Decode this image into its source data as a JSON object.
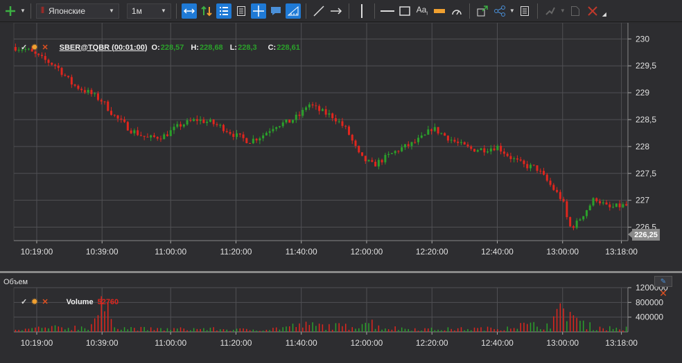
{
  "toolbar": {
    "chart_type": "Японские",
    "timeframe": "1м",
    "icons": [
      "add-icon",
      "candles-icon",
      "sync-icon",
      "sort-icon",
      "list-icon",
      "doc-icon",
      "crosshair-icon",
      "comment-icon",
      "ruler-icon",
      "line-icon",
      "arrow-icon",
      "vline-icon",
      "hline-icon",
      "rect-icon",
      "text-icon",
      "highlight-icon",
      "gauge-icon",
      "export-icon",
      "share-icon",
      "notes-icon",
      "pin-icon",
      "file-icon",
      "delete-icon"
    ]
  },
  "main_chart": {
    "symbol": "SBER@TQBR (00:01:00)",
    "o_label": "O:",
    "o_value": "228,57",
    "h_label": "H:",
    "h_value": "228,68",
    "l_label": "L:",
    "l_value": "228,3",
    "c_label": "C:",
    "c_value": "228,61",
    "last_price": "226,25",
    "y_ticks": [
      "230",
      "229,5",
      "229",
      "228,5",
      "228",
      "227,5",
      "227",
      "226,5"
    ],
    "x_ticks": [
      "10:19:00",
      "10:39:00",
      "11:00:00",
      "11:20:00",
      "11:40:00",
      "12:00:00",
      "12:20:00",
      "12:40:00",
      "13:00:00",
      "13:18:00"
    ]
  },
  "volume_pane": {
    "title": "Объем",
    "series_label": "Volume",
    "series_value": "52760",
    "y_ticks": [
      "1200000",
      "800000",
      "400000"
    ],
    "x_ticks": [
      "10:19:00",
      "10:39:00",
      "11:00:00",
      "11:20:00",
      "11:40:00",
      "12:00:00",
      "12:20:00",
      "12:40:00",
      "13:00:00",
      "13:18:00"
    ]
  },
  "colors": {
    "up": "#2ba02b",
    "down": "#e0261e",
    "grid": "#505054",
    "bg": "#2d2d30"
  },
  "chart_data": {
    "type": "candlestick",
    "x_range": [
      "10:12:00",
      "13:20:00"
    ],
    "ylim": [
      226.25,
      230.3
    ],
    "price_path": [
      [
        "10:12",
        229.85
      ],
      [
        "10:16",
        229.8
      ],
      [
        "10:20",
        229.65
      ],
      [
        "10:25",
        229.5
      ],
      [
        "10:30",
        229.15
      ],
      [
        "10:35",
        229.0
      ],
      [
        "10:39",
        228.85
      ],
      [
        "10:43",
        228.55
      ],
      [
        "10:48",
        228.3
      ],
      [
        "10:53",
        228.15
      ],
      [
        "10:58",
        228.2
      ],
      [
        "11:03",
        228.4
      ],
      [
        "11:08",
        228.5
      ],
      [
        "11:12",
        228.45
      ],
      [
        "11:16",
        228.35
      ],
      [
        "11:20",
        228.2
      ],
      [
        "11:24",
        228.1
      ],
      [
        "11:28",
        228.2
      ],
      [
        "11:32",
        228.4
      ],
      [
        "11:36",
        228.45
      ],
      [
        "11:40",
        228.6
      ],
      [
        "11:42",
        228.8
      ],
      [
        "11:46",
        228.65
      ],
      [
        "11:50",
        228.55
      ],
      [
        "11:54",
        228.3
      ],
      [
        "11:58",
        227.8
      ],
      [
        "12:02",
        227.65
      ],
      [
        "12:06",
        227.8
      ],
      [
        "12:10",
        227.95
      ],
      [
        "12:14",
        228.05
      ],
      [
        "12:18",
        228.2
      ],
      [
        "12:20",
        228.35
      ],
      [
        "12:24",
        228.2
      ],
      [
        "12:28",
        228.05
      ],
      [
        "12:32",
        227.95
      ],
      [
        "12:36",
        227.95
      ],
      [
        "12:40",
        228.0
      ],
      [
        "12:44",
        227.8
      ],
      [
        "12:48",
        227.65
      ],
      [
        "12:52",
        227.6
      ],
      [
        "12:56",
        227.3
      ],
      [
        "13:00",
        227.0
      ],
      [
        "13:02",
        226.5
      ],
      [
        "13:04",
        226.55
      ],
      [
        "13:07",
        226.8
      ],
      [
        "13:10",
        227.05
      ],
      [
        "13:12",
        226.95
      ],
      [
        "13:14",
        226.85
      ],
      [
        "13:18",
        226.9
      ]
    ],
    "volume_ylim": [
      0,
      1200000
    ],
    "volume_path": [
      [
        "10:12",
        60000
      ],
      [
        "10:19",
        160000
      ],
      [
        "10:35",
        220000
      ],
      [
        "10:39",
        1100000
      ],
      [
        "10:45",
        180000
      ],
      [
        "10:55",
        120000
      ],
      [
        "11:10",
        140000
      ],
      [
        "11:20",
        100000
      ],
      [
        "11:30",
        120000
      ],
      [
        "11:40",
        300000
      ],
      [
        "11:55",
        230000
      ],
      [
        "12:00",
        500000
      ],
      [
        "12:05",
        180000
      ],
      [
        "12:20",
        120000
      ],
      [
        "12:40",
        150000
      ],
      [
        "12:45",
        300000
      ],
      [
        "12:55",
        280000
      ],
      [
        "13:00",
        900000
      ],
      [
        "13:01",
        1200000
      ],
      [
        "13:02",
        1000000
      ],
      [
        "13:05",
        400000
      ],
      [
        "13:10",
        200000
      ],
      [
        "13:18",
        150000
      ]
    ]
  }
}
